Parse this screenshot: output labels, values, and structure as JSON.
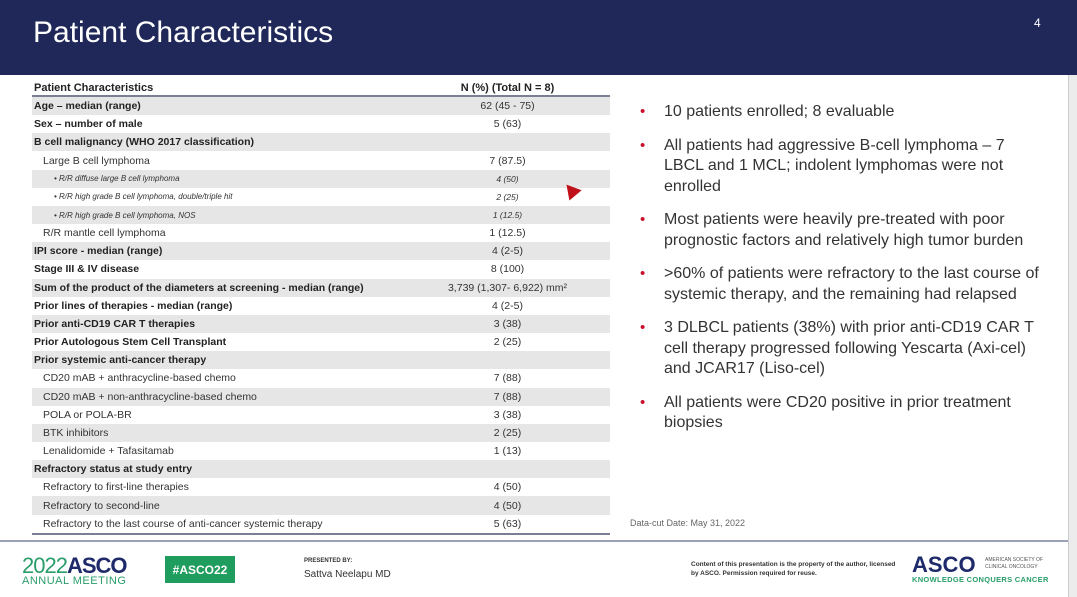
{
  "slide": {
    "title": "Patient Characteristics",
    "page_number": "4"
  },
  "table": {
    "headers": [
      "Patient Characteristics",
      "N (%) (Total N = 8)"
    ],
    "rows": [
      {
        "label": "Age – median (range)",
        "value": "62 (45 - 75)"
      },
      {
        "label": "Sex – number of male",
        "value": "5 (63)"
      },
      {
        "label": "B cell malignancy (WHO 2017 classification)",
        "value": ""
      },
      {
        "label": "Large B cell lymphoma",
        "value": "7 (87.5)"
      },
      {
        "label": "• R/R diffuse large B cell lymphoma",
        "value": "4 (50)"
      },
      {
        "label": "• R/R high grade B cell lymphoma, double/triple hit",
        "value": "2 (25)"
      },
      {
        "label": "• R/R high grade B cell lymphoma, NOS",
        "value": "1 (12.5)"
      },
      {
        "label": "R/R mantle cell lymphoma",
        "value": "1 (12.5)"
      },
      {
        "label": "IPI score - median (range)",
        "value": "4 (2-5)"
      },
      {
        "label": "Stage III & IV disease",
        "value": "8 (100)"
      },
      {
        "label": "Sum of the product of the diameters at screening - median (range)",
        "value": "3,739 (1,307- 6,922) mm²"
      },
      {
        "label": "Prior lines of therapies - median (range)",
        "value": "4 (2-5)"
      },
      {
        "label": "Prior anti-CD19 CAR T therapies",
        "value": "3 (38)"
      },
      {
        "label": "Prior Autologous Stem Cell Transplant",
        "value": "2 (25)"
      },
      {
        "label": "Prior systemic anti-cancer therapy",
        "value": ""
      },
      {
        "label": "CD20 mAB + anthracycline-based chemo",
        "value": "7 (88)"
      },
      {
        "label": "CD20 mAB + non-anthracycline-based chemo",
        "value": "7 (88)"
      },
      {
        "label": "POLA or POLA-BR",
        "value": "3 (38)"
      },
      {
        "label": "BTK inhibitors",
        "value": "2 (25)"
      },
      {
        "label": "Lenalidomide + Tafasitamab",
        "value": "1 (13)"
      },
      {
        "label": "Refractory status at study entry",
        "value": ""
      },
      {
        "label": "Refractory to first-line therapies",
        "value": "4 (50)"
      },
      {
        "label": "Refractory to second-line",
        "value": "4 (50)"
      },
      {
        "label": "Refractory to the last course of anti-cancer systemic therapy",
        "value": "5 (63)"
      }
    ]
  },
  "bullets": [
    "10 patients enrolled; 8 evaluable",
    "All patients had aggressive B-cell lymphoma – 7 LBCL and 1 MCL; indolent lymphomas were not enrolled",
    "Most patients were heavily pre-treated with poor prognostic factors and relatively high tumor burden",
    ">60% of patients were refractory to the last course of systemic therapy, and the remaining had relapsed",
    "3 DLBCL patients (38%) with prior anti-CD19 CAR T cell therapy progressed following Yescarta (Axi-cel) and JCAR17 (Liso-cel)",
    "All patients were CD20 positive in prior treatment biopsies"
  ],
  "data_cut": "Data-cut Date:  May 31, 2022",
  "footer": {
    "logo_year": "2022",
    "logo_name": "ASCO",
    "logo_sub": "ANNUAL MEETING",
    "hashtag": "#ASCO22",
    "presented_by": "PRESENTED BY:",
    "presenter": "Sattva Neelapu MD",
    "copyright": "Content of this presentation is the property of the author, licensed by ASCO. Permission required for reuse.",
    "asco_logo": "ASCO",
    "asco_society": "AMERICAN SOCIETY OF CLINICAL ONCOLOGY",
    "tagline": "KNOWLEDGE CONQUERS CANCER"
  },
  "colors": {
    "header": "#1f2858",
    "bullet": "#c8102e",
    "green": "#1f9d5e"
  }
}
